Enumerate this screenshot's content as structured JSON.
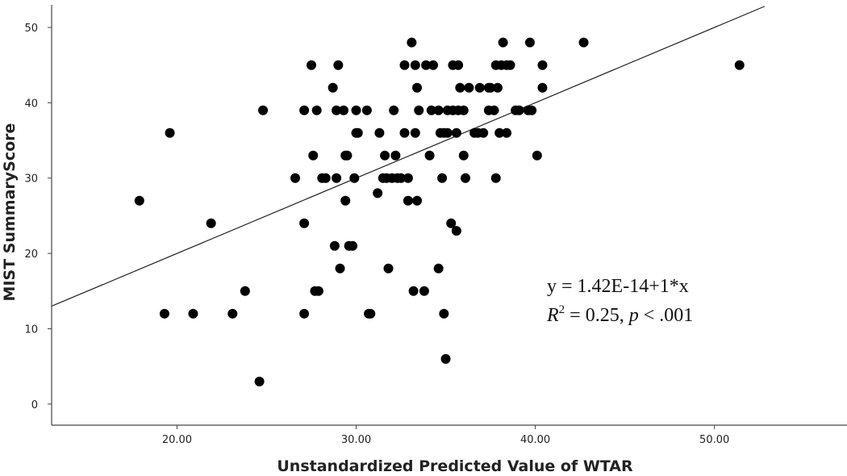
{
  "chart_data": {
    "type": "scatter",
    "xlabel": "Unstandardized Predicted Value of WTAR",
    "ylabel": "MIST SummaryScore",
    "xlim": [
      13,
      57.4
    ],
    "ylim": [
      -2.8,
      53
    ],
    "x_ticks": [
      20,
      30,
      40,
      50
    ],
    "x_tick_labels": [
      "20.00",
      "30.00",
      "40.00",
      "50.00"
    ],
    "y_ticks": [
      0,
      10,
      20,
      30,
      40,
      50
    ],
    "y_tick_labels": [
      "0",
      "10",
      "20",
      "30",
      "40",
      "50"
    ],
    "grid": false,
    "legend": "none",
    "colors": {
      "points": "#000000",
      "fit_line": "#222222",
      "axis": "#444444"
    },
    "fit_line": {
      "intercept": 0,
      "slope": 1,
      "x_range": [
        13,
        52.8
      ]
    },
    "annotation": {
      "equation": "y = 1.42E-14+1*x",
      "r2_symbol": "R",
      "r2_exponent": "2",
      "r2_value": " = 0.25, ",
      "p_symbol": "p",
      "p_value": " < .001"
    },
    "points": [
      {
        "x": 17.9,
        "y": 27
      },
      {
        "x": 19.3,
        "y": 12
      },
      {
        "x": 19.6,
        "y": 36
      },
      {
        "x": 20.9,
        "y": 12
      },
      {
        "x": 21.9,
        "y": 24
      },
      {
        "x": 23.1,
        "y": 12
      },
      {
        "x": 23.8,
        "y": 15
      },
      {
        "x": 24.6,
        "y": 3
      },
      {
        "x": 24.8,
        "y": 39
      },
      {
        "x": 26.6,
        "y": 30
      },
      {
        "x": 27.1,
        "y": 39
      },
      {
        "x": 27.1,
        "y": 24
      },
      {
        "x": 27.1,
        "y": 12
      },
      {
        "x": 27.5,
        "y": 45
      },
      {
        "x": 27.6,
        "y": 33
      },
      {
        "x": 27.7,
        "y": 15
      },
      {
        "x": 27.8,
        "y": 39
      },
      {
        "x": 27.9,
        "y": 15
      },
      {
        "x": 28.1,
        "y": 30
      },
      {
        "x": 28.3,
        "y": 30
      },
      {
        "x": 28.7,
        "y": 42
      },
      {
        "x": 28.8,
        "y": 21
      },
      {
        "x": 28.9,
        "y": 39
      },
      {
        "x": 28.9,
        "y": 30
      },
      {
        "x": 29.0,
        "y": 45
      },
      {
        "x": 29.1,
        "y": 18
      },
      {
        "x": 29.3,
        "y": 39
      },
      {
        "x": 29.4,
        "y": 33
      },
      {
        "x": 29.4,
        "y": 27
      },
      {
        "x": 29.5,
        "y": 33
      },
      {
        "x": 29.6,
        "y": 21
      },
      {
        "x": 29.8,
        "y": 21
      },
      {
        "x": 29.9,
        "y": 30
      },
      {
        "x": 30.0,
        "y": 36
      },
      {
        "x": 30.0,
        "y": 39
      },
      {
        "x": 30.1,
        "y": 36
      },
      {
        "x": 30.6,
        "y": 39
      },
      {
        "x": 30.7,
        "y": 12
      },
      {
        "x": 30.8,
        "y": 12
      },
      {
        "x": 31.2,
        "y": 28
      },
      {
        "x": 31.3,
        "y": 36
      },
      {
        "x": 31.5,
        "y": 30
      },
      {
        "x": 31.6,
        "y": 33
      },
      {
        "x": 31.7,
        "y": 30
      },
      {
        "x": 31.8,
        "y": 18
      },
      {
        "x": 32.0,
        "y": 30
      },
      {
        "x": 32.1,
        "y": 39
      },
      {
        "x": 32.2,
        "y": 33
      },
      {
        "x": 32.3,
        "y": 30
      },
      {
        "x": 32.5,
        "y": 30
      },
      {
        "x": 32.7,
        "y": 36
      },
      {
        "x": 32.7,
        "y": 45
      },
      {
        "x": 32.9,
        "y": 30
      },
      {
        "x": 32.9,
        "y": 27
      },
      {
        "x": 33.1,
        "y": 48
      },
      {
        "x": 33.2,
        "y": 15
      },
      {
        "x": 33.3,
        "y": 45
      },
      {
        "x": 33.3,
        "y": 36
      },
      {
        "x": 33.4,
        "y": 42
      },
      {
        "x": 33.4,
        "y": 27
      },
      {
        "x": 33.5,
        "y": 39
      },
      {
        "x": 33.8,
        "y": 15
      },
      {
        "x": 33.9,
        "y": 45
      },
      {
        "x": 34.1,
        "y": 33
      },
      {
        "x": 34.2,
        "y": 39
      },
      {
        "x": 34.3,
        "y": 45
      },
      {
        "x": 34.6,
        "y": 18
      },
      {
        "x": 34.6,
        "y": 39
      },
      {
        "x": 34.7,
        "y": 36
      },
      {
        "x": 34.8,
        "y": 30
      },
      {
        "x": 34.9,
        "y": 36
      },
      {
        "x": 34.9,
        "y": 12
      },
      {
        "x": 35.0,
        "y": 6
      },
      {
        "x": 35.1,
        "y": 36
      },
      {
        "x": 35.1,
        "y": 39
      },
      {
        "x": 35.3,
        "y": 24
      },
      {
        "x": 35.4,
        "y": 39
      },
      {
        "x": 35.4,
        "y": 45
      },
      {
        "x": 35.6,
        "y": 36
      },
      {
        "x": 35.6,
        "y": 23
      },
      {
        "x": 35.7,
        "y": 45
      },
      {
        "x": 35.7,
        "y": 39
      },
      {
        "x": 35.8,
        "y": 42
      },
      {
        "x": 36.0,
        "y": 33
      },
      {
        "x": 36.0,
        "y": 39
      },
      {
        "x": 36.1,
        "y": 30
      },
      {
        "x": 36.3,
        "y": 42
      },
      {
        "x": 36.6,
        "y": 36
      },
      {
        "x": 36.8,
        "y": 36
      },
      {
        "x": 36.9,
        "y": 42
      },
      {
        "x": 37.1,
        "y": 36
      },
      {
        "x": 37.4,
        "y": 42
      },
      {
        "x": 37.4,
        "y": 39
      },
      {
        "x": 37.5,
        "y": 42
      },
      {
        "x": 37.7,
        "y": 39
      },
      {
        "x": 37.8,
        "y": 45
      },
      {
        "x": 37.8,
        "y": 30
      },
      {
        "x": 37.9,
        "y": 42
      },
      {
        "x": 38.0,
        "y": 36
      },
      {
        "x": 38.1,
        "y": 45
      },
      {
        "x": 38.2,
        "y": 48
      },
      {
        "x": 38.4,
        "y": 36
      },
      {
        "x": 38.4,
        "y": 45
      },
      {
        "x": 38.6,
        "y": 45
      },
      {
        "x": 38.9,
        "y": 39
      },
      {
        "x": 39.1,
        "y": 39
      },
      {
        "x": 39.6,
        "y": 39
      },
      {
        "x": 39.7,
        "y": 48
      },
      {
        "x": 39.8,
        "y": 39
      },
      {
        "x": 40.1,
        "y": 33
      },
      {
        "x": 40.4,
        "y": 42
      },
      {
        "x": 40.4,
        "y": 45
      },
      {
        "x": 42.7,
        "y": 48
      },
      {
        "x": 51.4,
        "y": 45
      }
    ]
  }
}
